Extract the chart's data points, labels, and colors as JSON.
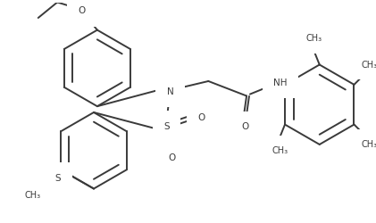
{
  "bg_color": "#ffffff",
  "line_color": "#3a3a3a",
  "line_width": 1.4,
  "text_color": "#3a3a3a",
  "font_size": 7.5,
  "figsize": [
    4.21,
    2.5
  ],
  "dpi": 100,
  "xlim": [
    0,
    421
  ],
  "ylim": [
    0,
    250
  ]
}
